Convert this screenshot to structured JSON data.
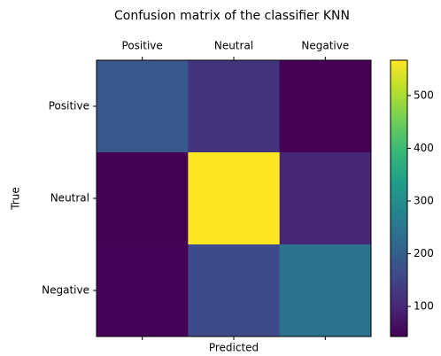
{
  "chart_data": {
    "type": "heatmap",
    "title": "Confusion matrix of the classifier KNN",
    "xlabel": "Predicted",
    "ylabel": "True",
    "x_categories": [
      "Positive",
      "Neutral",
      "Negative"
    ],
    "y_categories": [
      "Positive",
      "Neutral",
      "Negative"
    ],
    "values": [
      [
        185,
        122,
        43
      ],
      [
        45,
        567,
        98
      ],
      [
        46,
        160,
        245
      ]
    ],
    "colormap": "viridis",
    "clim": [
      43,
      567
    ],
    "cticks": [
      100,
      200,
      300,
      400,
      500
    ]
  }
}
